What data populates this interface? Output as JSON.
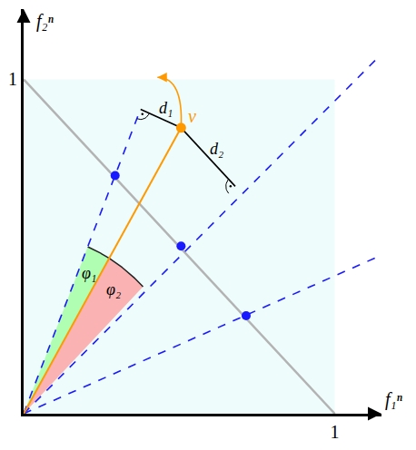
{
  "chart_data": {
    "type": "scatter",
    "xlabel": "f₁ⁿ",
    "ylabel": "f₂ⁿ",
    "xlim": [
      0,
      1.15
    ],
    "ylim": [
      0,
      1.21
    ],
    "xticks": [
      1
    ],
    "yticks": [
      1
    ],
    "grid": false,
    "region": {
      "x": [
        0,
        1
      ],
      "y": [
        0,
        1
      ],
      "color": "#effcfc"
    },
    "hyperplane": {
      "x": [
        0,
        1
      ],
      "y": [
        1,
        0
      ],
      "color": "#b3b3b3"
    },
    "reference_lines": {
      "color": "#1a1aff",
      "line_style": "dash",
      "x": [
        0.37,
        1.13,
        1.14
      ],
      "y": [
        0.897,
        1.057,
        0.47
      ]
    },
    "reference_points": {
      "color": "#1a1aff",
      "marker": "circle",
      "x": [
        0.294,
        0.506,
        0.715
      ],
      "y": [
        0.712,
        0.501,
        0.293
      ]
    },
    "point": {
      "label": "v",
      "x": 0.506,
      "y": 0.855,
      "color": "#ff9900",
      "marker": "circle",
      "arrow_to": {
        "x": 0.43,
        "y": 1.006
      }
    },
    "distances": [
      {
        "label": "d₁",
        "x": [
          0.506,
          0.376
        ],
        "y": [
          0.855,
          0.91
        ]
      },
      {
        "label": "d₂",
        "x": [
          0.506,
          0.68
        ],
        "y": [
          0.855,
          0.68
        ]
      }
    ],
    "angles": [
      {
        "label": "φ₁",
        "color": "#99ff99",
        "radius": 0.54
      },
      {
        "label": "φ₂",
        "color": "#ff9999",
        "radius": 0.54
      }
    ]
  }
}
